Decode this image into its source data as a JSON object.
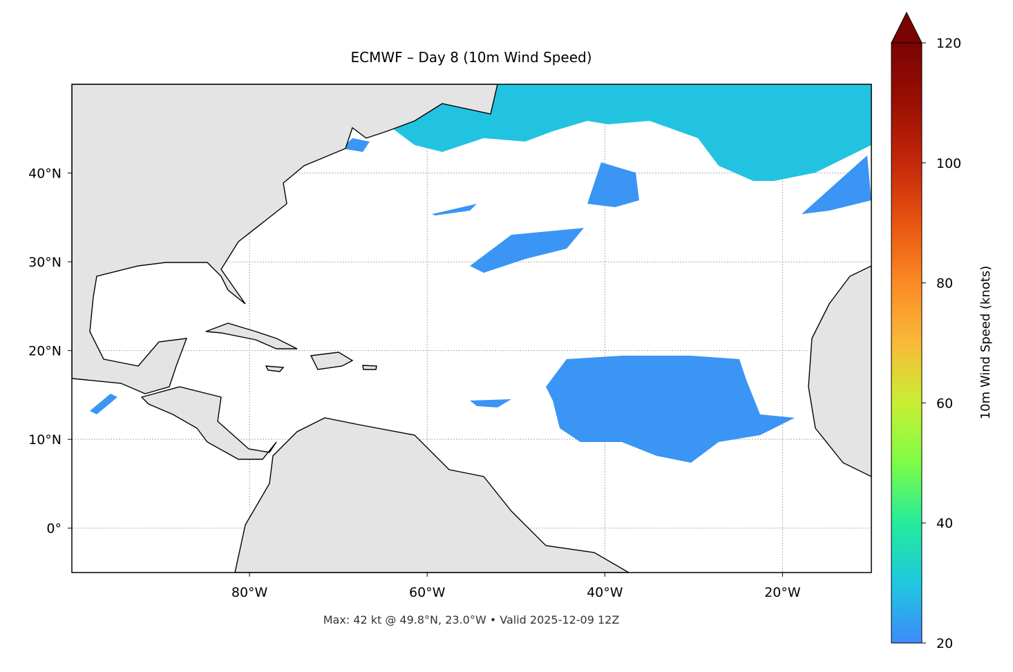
{
  "map": {
    "title": "ECMWF – Day 8 (10m Wind Speed)",
    "footer": "Max: 42 kt @ 49.8°N, 23.0°W • Valid 2025-12-09 12Z",
    "lon_range": [
      -100,
      -10
    ],
    "lat_range": [
      -5,
      50
    ],
    "lon_ticks": [
      {
        "value": -80,
        "label": "80°W"
      },
      {
        "value": -60,
        "label": "60°W"
      },
      {
        "value": -40,
        "label": "40°W"
      },
      {
        "value": -20,
        "label": "20°W"
      }
    ],
    "lat_ticks": [
      {
        "value": 0,
        "label": "0°"
      },
      {
        "value": 10,
        "label": "10°N"
      },
      {
        "value": 20,
        "label": "20°N"
      },
      {
        "value": 30,
        "label": "30°N"
      },
      {
        "value": 40,
        "label": "40°N"
      }
    ],
    "colorbar": {
      "label": "10m Wind Speed (knots)",
      "range": [
        20,
        120
      ],
      "ticks": [
        20,
        40,
        60,
        80,
        100,
        120
      ]
    }
  }
}
